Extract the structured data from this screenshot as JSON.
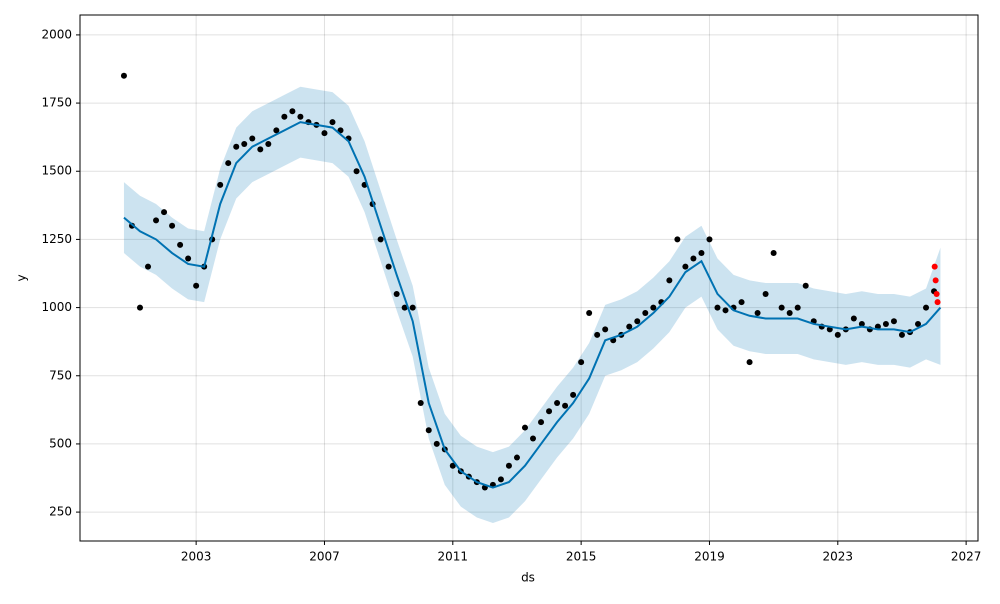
{
  "chart_data": {
    "type": "line",
    "xlabel": "ds",
    "ylabel": "y",
    "xlim": [
      1999.38,
      2027.37
    ],
    "ylim": [
      144,
      2073
    ],
    "xticks": [
      2003,
      2007,
      2011,
      2015,
      2019,
      2023,
      2027
    ],
    "yticks": [
      250,
      500,
      750,
      1000,
      1250,
      1500,
      1750,
      2000
    ],
    "grid": true,
    "band": {
      "color": "#0072B2",
      "x": [
        2000.75,
        2001.25,
        2001.75,
        2002.25,
        2002.75,
        2003.25,
        2003.75,
        2004.25,
        2004.75,
        2005.25,
        2005.75,
        2006.25,
        2006.75,
        2007.25,
        2007.75,
        2008.25,
        2008.75,
        2009.25,
        2009.75,
        2010.25,
        2010.75,
        2011.25,
        2011.75,
        2012.25,
        2012.75,
        2013.25,
        2013.75,
        2014.25,
        2014.75,
        2015.25,
        2015.75,
        2016.25,
        2016.75,
        2017.25,
        2017.75,
        2018.25,
        2018.75,
        2019.25,
        2019.75,
        2020.25,
        2020.75,
        2021.25,
        2021.75,
        2022.25,
        2022.75,
        2023.25,
        2023.75,
        2024.25,
        2024.75,
        2025.25,
        2025.75,
        2026.2
      ],
      "upper": [
        1460,
        1410,
        1380,
        1330,
        1290,
        1280,
        1510,
        1660,
        1720,
        1750,
        1780,
        1810,
        1800,
        1790,
        1740,
        1610,
        1430,
        1250,
        1080,
        780,
        610,
        530,
        490,
        470,
        490,
        550,
        630,
        710,
        780,
        870,
        1010,
        1030,
        1060,
        1110,
        1170,
        1260,
        1300,
        1180,
        1120,
        1100,
        1090,
        1090,
        1090,
        1070,
        1060,
        1050,
        1060,
        1050,
        1050,
        1040,
        1070,
        1220
      ],
      "lower": [
        1200,
        1150,
        1120,
        1070,
        1030,
        1020,
        1250,
        1400,
        1460,
        1490,
        1520,
        1550,
        1540,
        1530,
        1480,
        1350,
        1170,
        990,
        820,
        520,
        350,
        270,
        230,
        210,
        230,
        290,
        370,
        450,
        520,
        610,
        750,
        770,
        800,
        850,
        910,
        1000,
        1040,
        920,
        860,
        840,
        830,
        830,
        830,
        810,
        800,
        790,
        800,
        790,
        790,
        780,
        810,
        790
      ]
    },
    "series": [
      {
        "type": "scatter",
        "color": "#000000",
        "x": [
          2000.75,
          2001,
          2001.25,
          2001.5,
          2001.75,
          2002,
          2002.25,
          2002.5,
          2002.75,
          2003,
          2003.25,
          2003.5,
          2003.75,
          2004,
          2004.25,
          2004.5,
          2004.75,
          2005,
          2005.25,
          2005.5,
          2005.75,
          2006,
          2006.25,
          2006.5,
          2006.75,
          2007,
          2007.25,
          2007.5,
          2007.75,
          2008,
          2008.25,
          2008.5,
          2008.75,
          2009,
          2009.25,
          2009.5,
          2009.75,
          2010,
          2010.25,
          2010.5,
          2010.75,
          2011,
          2011.25,
          2011.5,
          2011.75,
          2012,
          2012.25,
          2012.5,
          2012.75,
          2013,
          2013.25,
          2013.5,
          2013.75,
          2014,
          2014.25,
          2014.5,
          2014.75,
          2015,
          2015.25,
          2015.5,
          2015.75,
          2016,
          2016.25,
          2016.5,
          2016.75,
          2017,
          2017.25,
          2017.5,
          2017.75,
          2018,
          2018.25,
          2018.5,
          2018.75,
          2019,
          2019.25,
          2019.5,
          2019.75,
          2020,
          2020.25,
          2020.5,
          2020.75,
          2021,
          2021.25,
          2021.5,
          2021.75,
          2022,
          2022.25,
          2022.5,
          2022.75,
          2023,
          2023.25,
          2023.5,
          2023.75,
          2024,
          2024.25,
          2024.5,
          2024.75,
          2025,
          2025.25,
          2025.5,
          2025.75,
          2026
        ],
        "values": [
          1850,
          1300,
          1000,
          1150,
          1320,
          1350,
          1300,
          1230,
          1180,
          1080,
          1150,
          1250,
          1450,
          1530,
          1590,
          1600,
          1620,
          1580,
          1600,
          1650,
          1700,
          1720,
          1700,
          1680,
          1670,
          1640,
          1680,
          1650,
          1620,
          1500,
          1450,
          1380,
          1250,
          1150,
          1050,
          1000,
          1000,
          650,
          550,
          500,
          480,
          420,
          400,
          380,
          360,
          340,
          350,
          370,
          420,
          450,
          560,
          520,
          580,
          620,
          650,
          640,
          680,
          800,
          980,
          900,
          920,
          880,
          900,
          930,
          950,
          980,
          1000,
          1020,
          1100,
          1250,
          1150,
          1180,
          1200,
          1250,
          1000,
          990,
          1000,
          1020,
          800,
          980,
          1050,
          1200,
          1000,
          980,
          1000,
          1080,
          950,
          930,
          920,
          900,
          920,
          960,
          940,
          920,
          930,
          940,
          950,
          900,
          910,
          940,
          1000,
          1060
        ]
      },
      {
        "type": "scatter",
        "color": "#ff0000",
        "x": [
          2026.02,
          2026.05,
          2026.08,
          2026.11
        ],
        "values": [
          1150,
          1100,
          1050,
          1020
        ]
      },
      {
        "type": "line",
        "color": "#0072B2",
        "x": [
          2000.75,
          2001.25,
          2001.75,
          2002.25,
          2002.75,
          2003.25,
          2003.75,
          2004.25,
          2004.75,
          2005.25,
          2005.75,
          2006.25,
          2006.75,
          2007.25,
          2007.75,
          2008.25,
          2008.75,
          2009.25,
          2009.75,
          2010.25,
          2010.75,
          2011.25,
          2011.75,
          2012.25,
          2012.75,
          2013.25,
          2013.75,
          2014.25,
          2014.75,
          2015.25,
          2015.75,
          2016.25,
          2016.75,
          2017.25,
          2017.75,
          2018.25,
          2018.75,
          2019.25,
          2019.75,
          2020.25,
          2020.75,
          2021.25,
          2021.75,
          2022.25,
          2022.75,
          2023.25,
          2023.75,
          2024.25,
          2024.75,
          2025.25,
          2025.75,
          2026.2
        ],
        "values": [
          1330,
          1280,
          1250,
          1200,
          1160,
          1150,
          1380,
          1530,
          1590,
          1620,
          1650,
          1680,
          1670,
          1660,
          1610,
          1480,
          1300,
          1120,
          950,
          650,
          480,
          400,
          360,
          340,
          360,
          420,
          500,
          580,
          650,
          740,
          880,
          900,
          930,
          980,
          1040,
          1130,
          1170,
          1050,
          990,
          970,
          960,
          960,
          960,
          940,
          930,
          920,
          930,
          920,
          920,
          910,
          940,
          1000
        ]
      }
    ]
  }
}
